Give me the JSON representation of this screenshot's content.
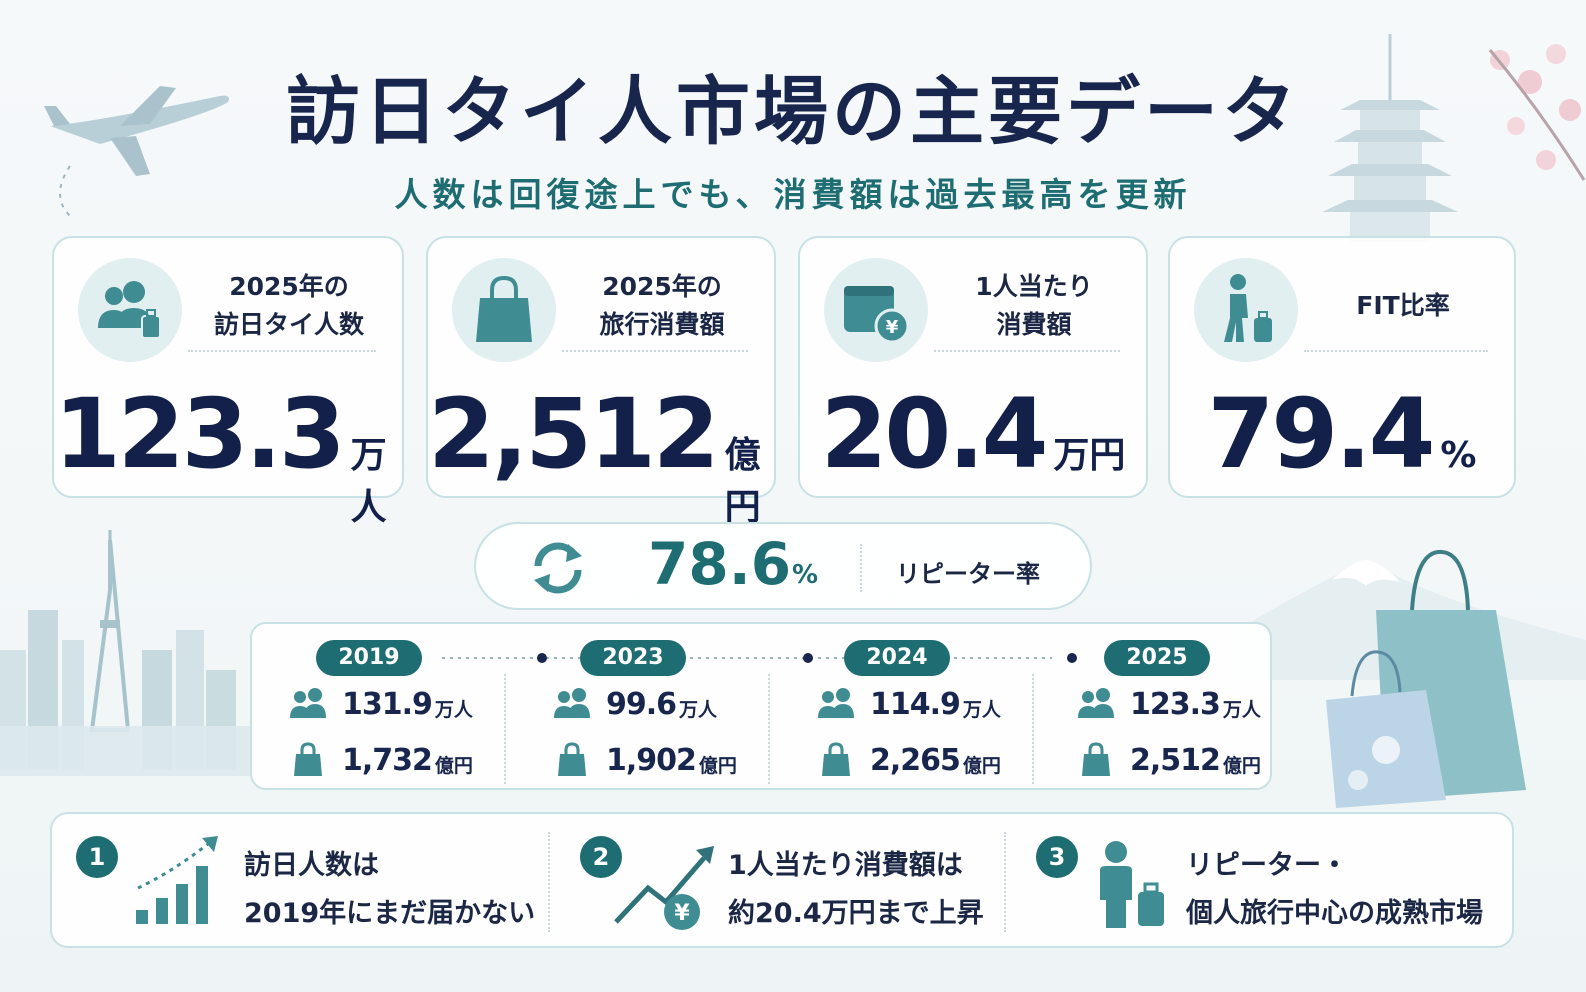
{
  "header": {
    "title": "訪日タイ人市場の主要データ",
    "subtitle": "人数は回復途上でも、消費額は過去最高を更新"
  },
  "colors": {
    "accent": "#1e6d72",
    "navy": "#16244a",
    "light": "#e1eff0"
  },
  "cards": [
    {
      "icon": "people-luggage-icon",
      "label_lines": [
        "2025年の",
        "訪日タイ人数"
      ],
      "value": "123.3",
      "unit": "万人"
    },
    {
      "icon": "shopping-bag-icon",
      "label_lines": [
        "2025年の",
        "旅行消費額"
      ],
      "value": "2,512",
      "unit": "億円"
    },
    {
      "icon": "wallet-yen-icon",
      "label_lines": [
        "1人当たり",
        "消費額"
      ],
      "value": "20.4",
      "unit": "万円"
    },
    {
      "icon": "traveler-icon",
      "label_lines": [
        "FIT比率"
      ],
      "value": "79.4",
      "unit": "%"
    }
  ],
  "repeat": {
    "icon": "repeat-arrows-icon",
    "value": "78.6",
    "unit": "%",
    "label": "リピーター率"
  },
  "timeline": [
    {
      "year": "2019",
      "visitors": "131.9",
      "visitors_unit": "万人",
      "spend": "1,732",
      "spend_unit": "億円"
    },
    {
      "year": "2023",
      "visitors": "99.6",
      "visitors_unit": "万人",
      "spend": "1,902",
      "spend_unit": "億円"
    },
    {
      "year": "2024",
      "visitors": "114.9",
      "visitors_unit": "万人",
      "spend": "2,265",
      "spend_unit": "億円"
    },
    {
      "year": "2025",
      "visitors": "123.3",
      "visitors_unit": "万人",
      "spend": "2,512",
      "spend_unit": "億円"
    }
  ],
  "points": [
    {
      "num": "1",
      "icon": "rising-bars-icon",
      "lines": [
        "訪日人数は",
        "2019年にまだ届かない"
      ]
    },
    {
      "num": "2",
      "icon": "trend-yen-icon",
      "lines": [
        "1人当たり消費額は",
        "約20.4万円まで上昇"
      ]
    },
    {
      "num": "3",
      "icon": "person-luggage-icon",
      "lines": [
        "リピーター・",
        "個人旅行中心の成熟市場"
      ]
    }
  ]
}
